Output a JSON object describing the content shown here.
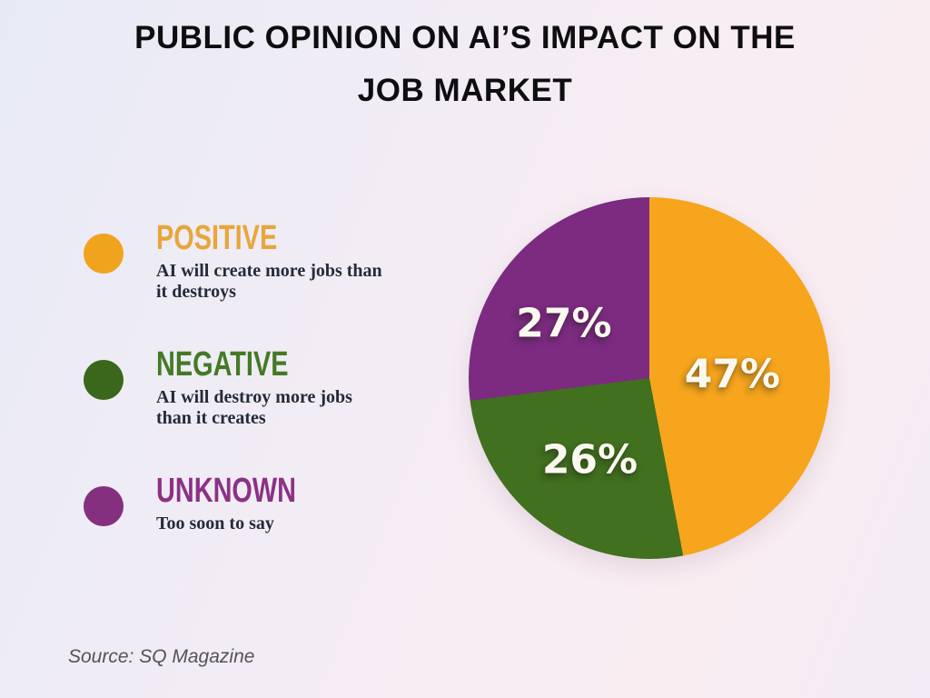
{
  "title": {
    "line1": "PUBLIC OPINION ON AI’S IMPACT ON THE",
    "line2": "JOB MARKET"
  },
  "legend": [
    {
      "id": "positive",
      "label": "POSITIVE",
      "description": "AI will create more jobs than\nit destroys",
      "color": "#F0A41E",
      "heading_color": "#E8A63A"
    },
    {
      "id": "negative",
      "label": "NEGATIVE",
      "description": "AI will destroy more jobs\nthan it creates",
      "color": "#3A671B",
      "heading_color": "#447A25"
    },
    {
      "id": "unknown",
      "label": "UNKNOWN",
      "description": "Too soon to say",
      "color": "#84307F",
      "heading_color": "#8C3185"
    }
  ],
  "source": "Source: SQ Magazine",
  "chart_data": {
    "type": "pie",
    "title": "Public opinion on AI's impact on the job market",
    "categories": [
      "Positive",
      "Negative",
      "Unknown"
    ],
    "values": [
      47,
      26,
      27
    ],
    "unit": "%",
    "labels": [
      "47%",
      "26%",
      "27%"
    ],
    "slice_colors": [
      "#F6A51C",
      "#41701E",
      "#7C2B80"
    ],
    "start_angle_deg": 0,
    "direction": "clockwise-from-top",
    "legend_position": "left",
    "data_labels": "inside"
  },
  "colors": {
    "background_left": "#E7EAF6",
    "background_right": "#F8EDF3",
    "title_text": "#0E0E10",
    "description_text": "#252A3A",
    "source_text": "#55525C",
    "pie_label_text": "#FBF9EF"
  }
}
